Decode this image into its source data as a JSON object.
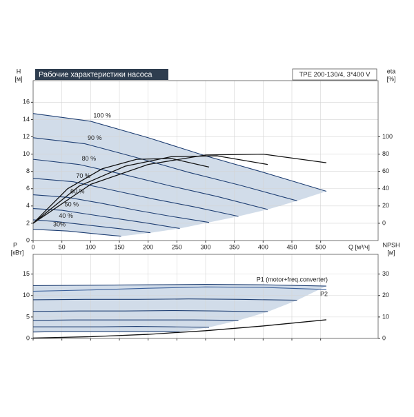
{
  "chart_data": [
    {
      "type": "line",
      "title": "Рабочие характеристики насоса",
      "model": "TPE 200-130/4, 3*400 V",
      "ylabel": "H",
      "yunit": "[м]",
      "y2label": "eta",
      "y2unit": "[%]",
      "xlabel": "Q [м³/ч]",
      "xlim": [
        0,
        600
      ],
      "xticks": [
        0,
        50,
        100,
        150,
        200,
        250,
        300,
        350,
        400,
        450,
        500
      ],
      "ylim": [
        0,
        18.5
      ],
      "yticks": [
        0,
        2,
        4,
        6,
        8,
        10,
        12,
        14,
        16
      ],
      "y2lim": [
        -20,
        165
      ],
      "y2ticks": [
        0,
        20,
        40,
        60,
        80,
        100
      ],
      "grid": true,
      "series": [
        {
          "name": "100 %",
          "color": "#1f3f73",
          "x": [
            0,
            100,
            200,
            300,
            400,
            510
          ],
          "values": [
            14.7,
            13.8,
            11.9,
            9.8,
            7.9,
            5.7
          ]
        },
        {
          "name": "90 %",
          "color": "#1f3f73",
          "x": [
            0,
            90,
            180,
            270,
            360,
            459
          ],
          "values": [
            11.9,
            11.2,
            9.6,
            7.9,
            6.4,
            4.6
          ]
        },
        {
          "name": "80 %",
          "color": "#1f3f73",
          "x": [
            0,
            80,
            160,
            240,
            320,
            408
          ],
          "values": [
            9.4,
            8.8,
            7.6,
            6.3,
            5.1,
            3.6
          ]
        },
        {
          "name": "70 %",
          "color": "#1f3f73",
          "x": [
            0,
            70,
            140,
            210,
            280,
            357
          ],
          "values": [
            7.2,
            6.8,
            5.8,
            4.8,
            3.9,
            2.8
          ]
        },
        {
          "name": "60 %",
          "color": "#1f3f73",
          "x": [
            0,
            60,
            120,
            180,
            240,
            306
          ],
          "values": [
            5.3,
            5.0,
            4.3,
            3.5,
            2.8,
            2.1
          ]
        },
        {
          "name": "50 %",
          "color": "#1f3f73",
          "x": [
            0,
            50,
            100,
            150,
            200,
            255
          ],
          "values": [
            3.7,
            3.5,
            3.0,
            2.5,
            2.0,
            1.4
          ]
        },
        {
          "name": "40 %",
          "color": "#1f3f73",
          "x": [
            0,
            40,
            80,
            120,
            160,
            204
          ],
          "values": [
            2.4,
            2.2,
            1.9,
            1.6,
            1.3,
            0.9
          ]
        },
        {
          "name": "30%",
          "color": "#1f3f73",
          "x": [
            0,
            30,
            60,
            90,
            120,
            153
          ],
          "values": [
            1.3,
            1.2,
            1.1,
            0.9,
            0.7,
            0.5
          ]
        },
        {
          "axis": "y2",
          "color": "#111111",
          "x": [
            0,
            100,
            200,
            300,
            400,
            510
          ],
          "values": [
            0,
            45,
            68,
            79,
            80,
            70
          ]
        },
        {
          "axis": "y2",
          "color": "#111111",
          "x": [
            0,
            80,
            160,
            240,
            320,
            408
          ],
          "values": [
            0,
            43,
            66,
            77,
            78,
            68
          ]
        },
        {
          "axis": "y2",
          "color": "#111111",
          "x": [
            0,
            60,
            120,
            180,
            240,
            306
          ],
          "values": [
            0,
            40,
            63,
            74,
            75,
            65
          ]
        }
      ]
    },
    {
      "type": "line",
      "ylabel": "P",
      "yunit": "[кВт]",
      "y2label": "NPSH",
      "y2unit": "[м]",
      "xlim": [
        0,
        600
      ],
      "xticks": [
        0,
        50,
        100,
        150,
        200,
        250,
        300,
        350,
        400,
        450,
        500
      ],
      "ylim": [
        0,
        19.6
      ],
      "yticks": [
        0,
        5,
        10,
        15
      ],
      "y2lim": [
        0,
        39.2
      ],
      "y2ticks": [
        0,
        10,
        20,
        30
      ],
      "grid": true,
      "series": [
        {
          "name": "P1 (motor+freq.converter)",
          "color": "#1f3f73",
          "x": [
            0,
            100,
            200,
            300,
            400,
            510
          ],
          "values": [
            12.3,
            12.4,
            12.5,
            12.6,
            12.5,
            12.2
          ]
        },
        {
          "color": "#1f3f73",
          "x": [
            0,
            90,
            180,
            270,
            360,
            459
          ],
          "values": [
            9.0,
            9.1,
            9.1,
            9.2,
            9.1,
            8.9
          ]
        },
        {
          "color": "#1f3f73",
          "x": [
            0,
            80,
            160,
            240,
            320,
            408
          ],
          "values": [
            6.3,
            6.4,
            6.4,
            6.5,
            6.4,
            6.2
          ]
        },
        {
          "color": "#1f3f73",
          "x": [
            0,
            70,
            140,
            210,
            280,
            357
          ],
          "values": [
            4.2,
            4.3,
            4.3,
            4.3,
            4.3,
            4.2
          ]
        },
        {
          "color": "#1f3f73",
          "x": [
            0,
            60,
            120,
            180,
            240,
            306
          ],
          "values": [
            2.7,
            2.7,
            2.7,
            2.8,
            2.7,
            2.6
          ]
        },
        {
          "color": "#1f3f73",
          "x": [
            0,
            50,
            100,
            150,
            200,
            255
          ],
          "values": [
            1.5,
            1.6,
            1.6,
            1.6,
            1.6,
            1.5
          ]
        },
        {
          "name": "P2",
          "color": "#3a5f9a",
          "x": [
            0,
            100,
            200,
            300,
            400,
            510
          ],
          "values": [
            11.0,
            11.3,
            11.7,
            12.0,
            11.9,
            11.4
          ]
        },
        {
          "axis": "y2",
          "color": "#111111",
          "x": [
            0,
            100,
            200,
            300,
            400,
            510
          ],
          "values": [
            0.2,
            0.8,
            1.9,
            3.6,
            5.8,
            8.7
          ]
        }
      ]
    }
  ]
}
